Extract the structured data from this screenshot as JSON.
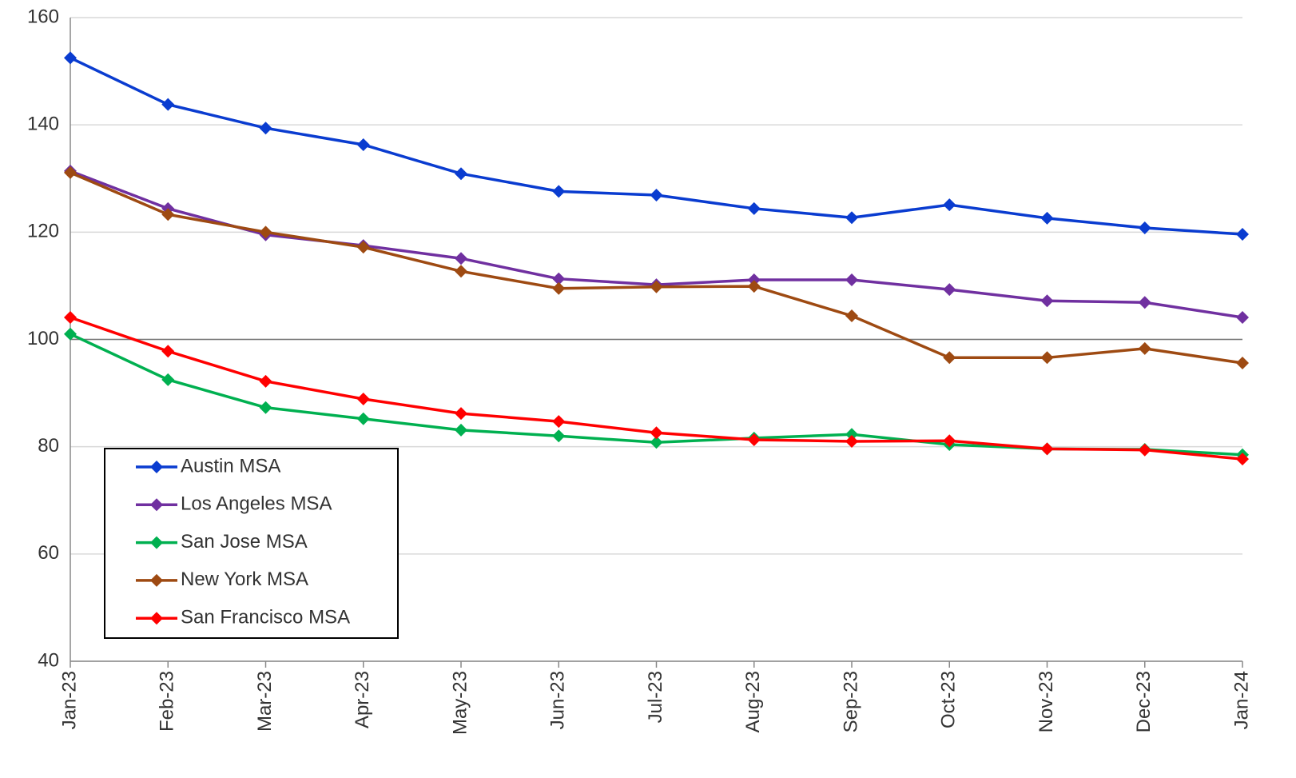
{
  "chart_data": {
    "type": "line",
    "categories": [
      "Jan-23",
      "Feb-23",
      "Mar-23",
      "Apr-23",
      "May-23",
      "Jun-23",
      "Jul-23",
      "Aug-23",
      "Sep-23",
      "Oct-23",
      "Nov-23",
      "Dec-23",
      "Jan-24"
    ],
    "series": [
      {
        "name": "Austin MSA",
        "color": "#0a3cd0",
        "values": [
          152.5,
          143.8,
          139.4,
          136.3,
          130.9,
          127.6,
          126.9,
          124.4,
          122.7,
          125.1,
          122.6,
          120.8,
          119.6
        ]
      },
      {
        "name": "Los Angeles MSA",
        "color": "#7030a0",
        "values": [
          131.4,
          124.4,
          119.5,
          117.5,
          115.1,
          111.3,
          110.2,
          111.1,
          111.1,
          109.3,
          107.2,
          106.9,
          104.1
        ]
      },
      {
        "name": "San Jose MSA",
        "color": "#00b050",
        "values": [
          101.0,
          92.5,
          87.3,
          85.2,
          83.1,
          82.0,
          80.8,
          81.6,
          82.3,
          80.4,
          79.6,
          79.5,
          78.5
        ]
      },
      {
        "name": "New York MSA",
        "color": "#9e4a12",
        "values": [
          131.1,
          123.3,
          120.0,
          117.2,
          112.7,
          109.5,
          109.8,
          109.9,
          104.4,
          96.6,
          96.6,
          98.3,
          95.6
        ]
      },
      {
        "name": "San Francisco MSA",
        "color": "#ff0000",
        "values": [
          104.1,
          97.8,
          92.2,
          88.9,
          86.2,
          84.7,
          82.6,
          81.3,
          81.0,
          81.1,
          79.6,
          79.4,
          77.7
        ]
      }
    ],
    "ylim": [
      40,
      160
    ],
    "yticks": [
      40,
      60,
      80,
      100,
      120,
      140,
      160
    ],
    "grid": true,
    "reference_line": 100,
    "legend": "lower-left"
  }
}
